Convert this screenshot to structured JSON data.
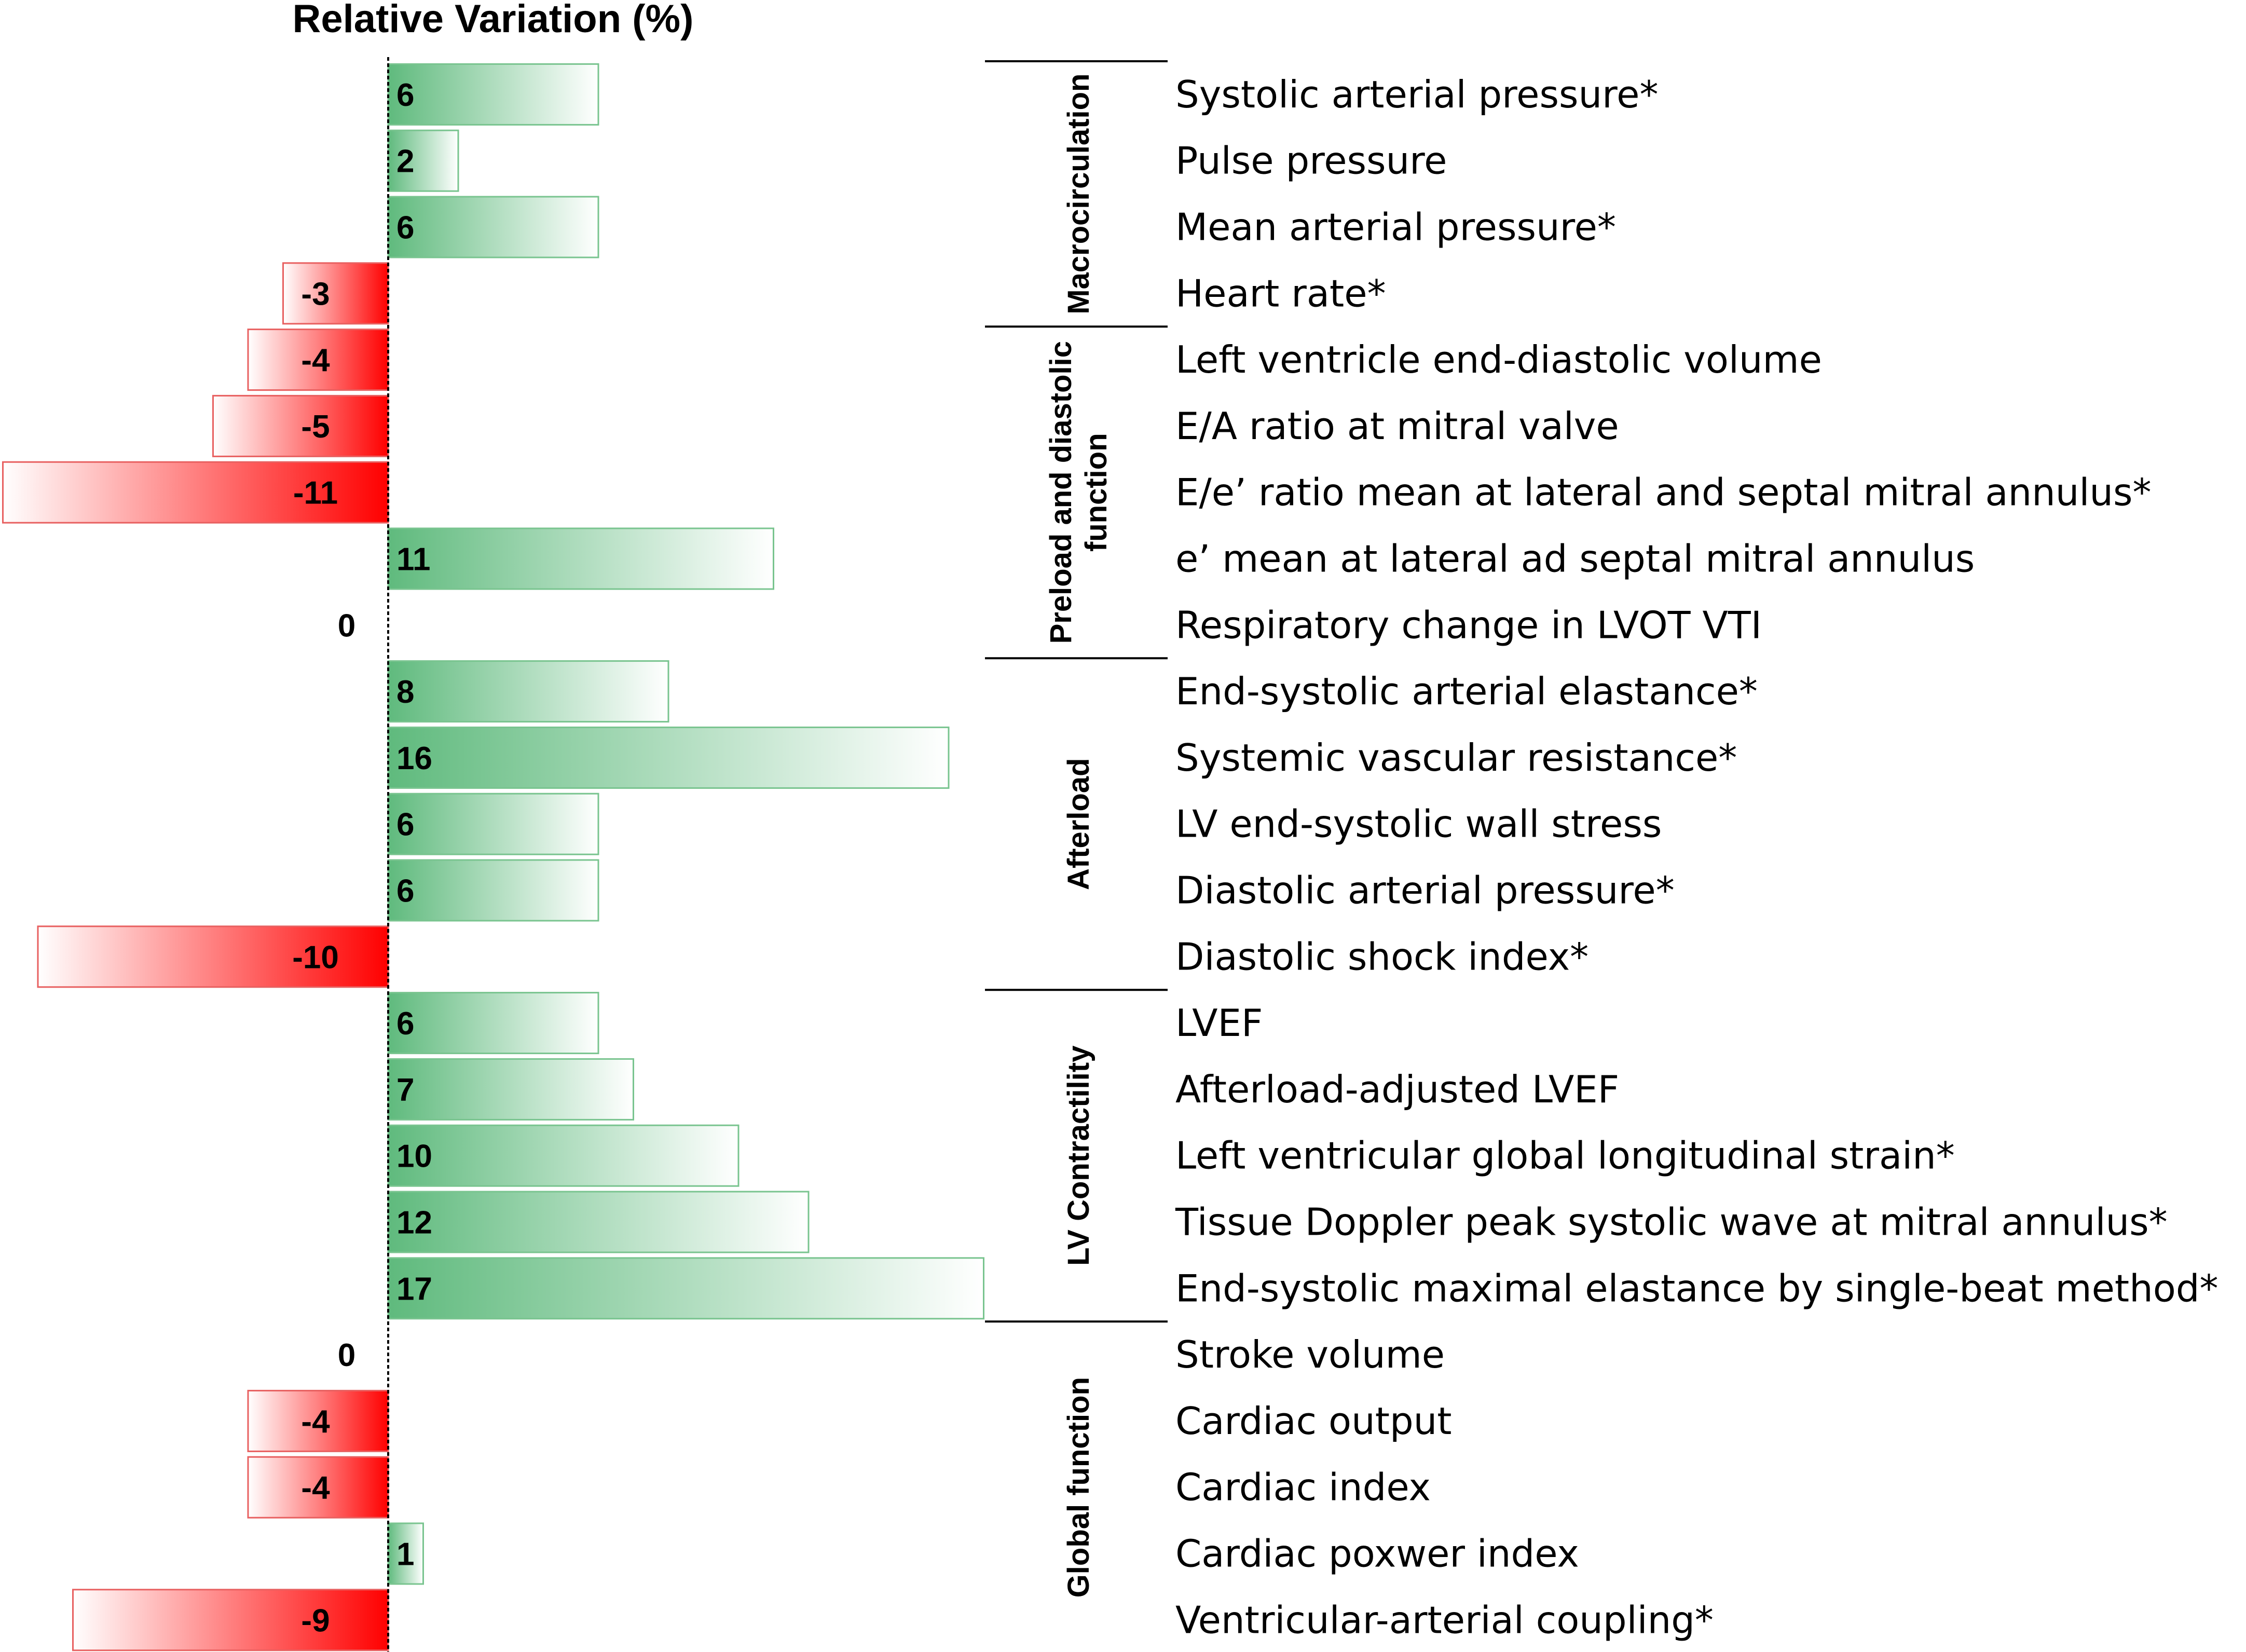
{
  "chart_data": {
    "type": "bar",
    "orientation": "horizontal",
    "title": "Relative Variation (%)",
    "colors": {
      "positive": "#5fba7d",
      "positive_fade": "#ffffff",
      "positive_stroke": "#79c48f",
      "negative": "#ff0000",
      "negative_fade": "#ffffff",
      "negative_stroke": "#e86060"
    },
    "xlim": [
      -11,
      17
    ],
    "items": [
      {
        "label": "Systolic arterial pressure*",
        "value": 6,
        "value_label": "6"
      },
      {
        "label": "Pulse pressure",
        "value": 2,
        "value_label": "2"
      },
      {
        "label": "Mean arterial pressure*",
        "value": 6,
        "value_label": "6"
      },
      {
        "label": "Heart rate*",
        "value": -3,
        "value_label": "-3"
      },
      {
        "label": "Left ventricle end-diastolic volume",
        "value": -4,
        "value_label": "-4"
      },
      {
        "label": "E/A ratio at mitral valve",
        "value": -5,
        "value_label": "-5"
      },
      {
        "label": "E/e’ ratio mean at lateral and septal mitral annulus*",
        "value": -11,
        "value_label": "-11"
      },
      {
        "label": "e’ mean at lateral ad septal mitral annulus",
        "value": 11,
        "value_label": "11"
      },
      {
        "label": "Respiratory change in LVOT VTI",
        "value": 0,
        "value_label": "0"
      },
      {
        "label": "End-systolic arterial elastance*",
        "value": 8,
        "value_label": "8"
      },
      {
        "label": "Systemic vascular resistance*",
        "value": 16,
        "value_label": "16"
      },
      {
        "label": "LV end-systolic wall stress",
        "value": 6,
        "value_label": "6"
      },
      {
        "label": "Diastolic arterial pressure*",
        "value": 6,
        "value_label": "6"
      },
      {
        "label": "Diastolic shock index*",
        "value": -10,
        "value_label": "-10"
      },
      {
        "label": "LVEF",
        "value": 6,
        "value_label": "6"
      },
      {
        "label": "Afterload-adjusted LVEF",
        "value": 7,
        "value_label": "7"
      },
      {
        "label": "Left ventricular global longitudinal strain*",
        "value": 10,
        "value_label": "10"
      },
      {
        "label": "Tissue Doppler peak systolic wave at mitral annulus*",
        "value": 12,
        "value_label": "12"
      },
      {
        "label": "End-systolic maximal elastance by single-beat method*",
        "value": 17,
        "value_label": "17"
      },
      {
        "label": "Stroke volume",
        "value": 0,
        "value_label": "0"
      },
      {
        "label": "Cardiac output",
        "value": -4,
        "value_label": "-4"
      },
      {
        "label": "Cardiac index",
        "value": -4,
        "value_label": "-4"
      },
      {
        "label": "Cardiac poxwer index",
        "value": 1,
        "value_label": "1"
      },
      {
        "label": "Ventricular-arterial coupling*",
        "value": -9,
        "value_label": "-9"
      }
    ],
    "groups": [
      {
        "name": "Macrocirculation",
        "lines": [
          "Macrocirculation"
        ],
        "start": 0,
        "end": 3
      },
      {
        "name": "Preload and diastolic function",
        "lines": [
          "Preload and diastolic",
          "function"
        ],
        "start": 4,
        "end": 8
      },
      {
        "name": "Afterload",
        "lines": [
          "Afterload"
        ],
        "start": 9,
        "end": 13
      },
      {
        "name": "LV Contractility",
        "lines": [
          "LV Contractility"
        ],
        "start": 14,
        "end": 18
      },
      {
        "name": "Global function",
        "lines": [
          "Global function"
        ],
        "start": 19,
        "end": 23
      }
    ]
  }
}
